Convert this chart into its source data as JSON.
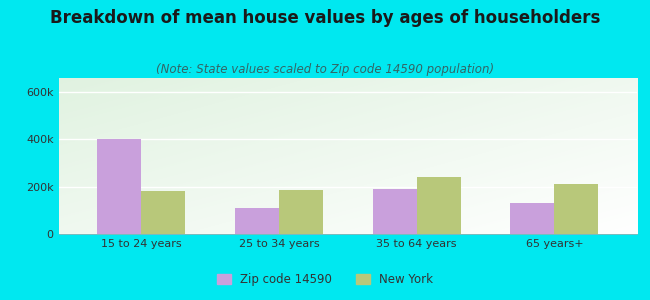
{
  "title": "Breakdown of mean house values by ages of householders",
  "subtitle": "(Note: State values scaled to Zip code 14590 population)",
  "categories": [
    "15 to 24 years",
    "25 to 34 years",
    "35 to 64 years",
    "65 years+"
  ],
  "zip_values": [
    400000,
    110000,
    190000,
    130000
  ],
  "ny_values": [
    180000,
    185000,
    240000,
    210000
  ],
  "zip_color": "#c9a0dc",
  "ny_color": "#b8c87a",
  "background_outer": "#00e8f0",
  "ylim": [
    0,
    660000
  ],
  "yticks": [
    0,
    200000,
    400000,
    600000
  ],
  "ytick_labels": [
    "0",
    "200k",
    "400k",
    "600k"
  ],
  "title_fontsize": 12,
  "subtitle_fontsize": 8.5,
  "legend_label_zip": "Zip code 14590",
  "legend_label_ny": "New York",
  "bar_width": 0.32
}
